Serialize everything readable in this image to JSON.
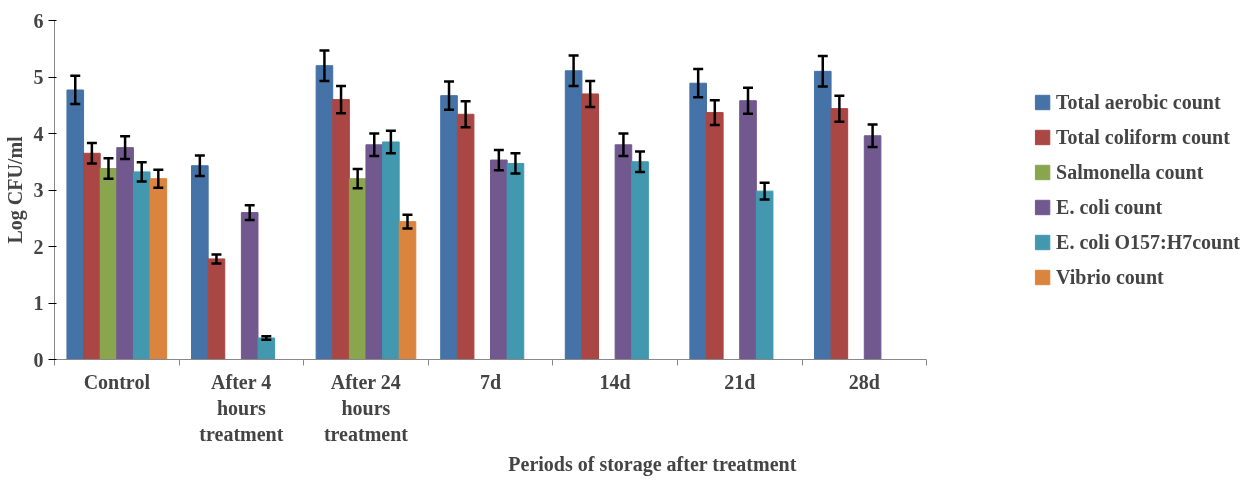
{
  "chart_data": {
    "type": "bar",
    "xlabel": "Periods of storage after treatment",
    "ylabel": "Log CFU/ml",
    "categories": [
      "Control",
      "After 4 hours treatment",
      "After 24 hours treatment",
      "7d",
      "14d",
      "21d",
      "28d"
    ],
    "series": [
      {
        "name": "Total aerobic count",
        "color": "#4572a7",
        "values": [
          4.77,
          3.43,
          5.2,
          4.67,
          5.11,
          4.89,
          5.1
        ],
        "errors": [
          0.25,
          0.18,
          0.27,
          0.25,
          0.27,
          0.25,
          0.27
        ]
      },
      {
        "name": "Total coliform count",
        "color": "#aa4643",
        "values": [
          3.65,
          1.78,
          4.6,
          4.34,
          4.7,
          4.37,
          4.44
        ],
        "errors": [
          0.18,
          0.08,
          0.24,
          0.23,
          0.23,
          0.22,
          0.23
        ]
      },
      {
        "name": "Salmonella count",
        "color": "#89a54e",
        "values": [
          3.38,
          0,
          3.2,
          0,
          0,
          0,
          0
        ],
        "errors": [
          0.18,
          null,
          0.17,
          null,
          null,
          null,
          null
        ]
      },
      {
        "name": "E. coli count",
        "color": "#71588f",
        "values": [
          3.75,
          2.6,
          3.8,
          3.53,
          3.8,
          4.58,
          3.96
        ],
        "errors": [
          0.2,
          0.13,
          0.2,
          0.18,
          0.2,
          0.23,
          0.2
        ]
      },
      {
        "name": "E. coli O157:H7count",
        "color": "#4198af",
        "values": [
          3.32,
          0.38,
          3.85,
          3.47,
          3.5,
          2.98,
          0
        ],
        "errors": [
          0.17,
          0.03,
          0.2,
          0.18,
          0.18,
          0.15,
          null
        ]
      },
      {
        "name": "Vibrio count",
        "color": "#db843d",
        "values": [
          3.2,
          0,
          2.44,
          0,
          0,
          0,
          0
        ],
        "errors": [
          0.16,
          null,
          0.12,
          null,
          null,
          null,
          null
        ]
      }
    ],
    "ylim": [
      0,
      6
    ],
    "yticks": [
      0,
      1,
      2,
      3,
      4,
      5,
      6
    ],
    "grid": false,
    "legend": "right"
  }
}
